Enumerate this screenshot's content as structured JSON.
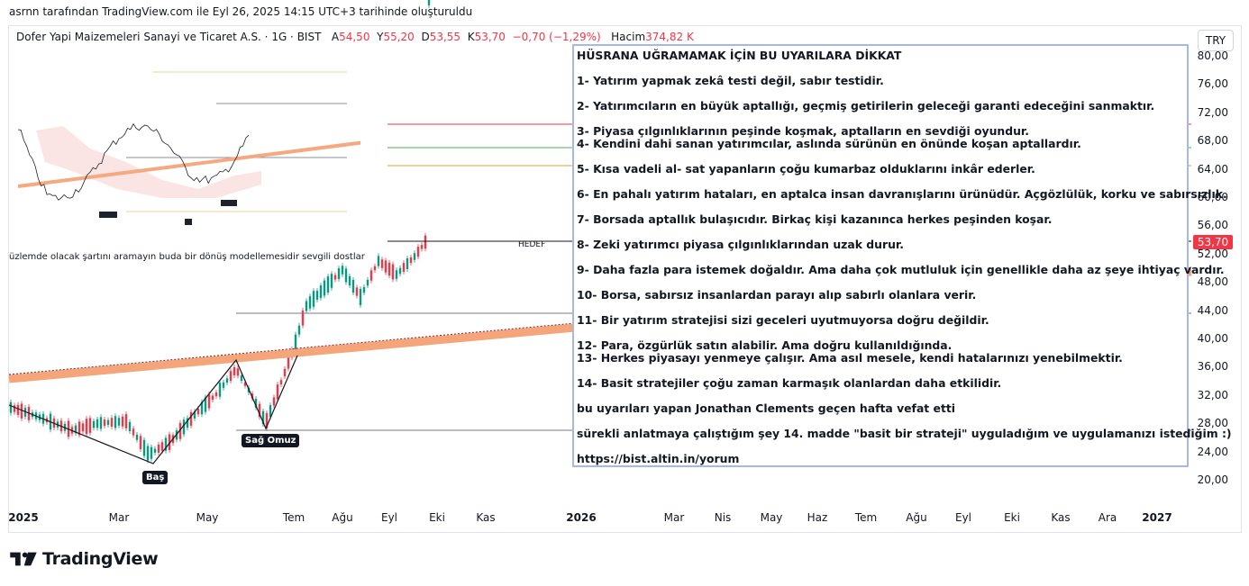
{
  "header": {
    "caption": "asrnn tarafından TradingView.com ile Eyl 26, 2025 14:15 UTC+3 tarihinde oluşturuldu"
  },
  "symbol": {
    "name": "Dofer Yapi Maizemeleri Sanayi ve Ticaret A.S. · 1G · BIST",
    "open_label": "A",
    "open": "54,50",
    "high_label": "Y",
    "high": "55,20",
    "low_label": "D",
    "low": "53,55",
    "close_label": "K",
    "close": "53,70",
    "change": "−0,70 (−1,29%)",
    "volume_label": "Hacim",
    "volume": "374,82 K"
  },
  "currency": "TRY",
  "price_axis": [
    "80,00",
    "76,00",
    "72,00",
    "68,00",
    "64,00",
    "60,00",
    "56,00",
    "52,00",
    "48,00",
    "44,00",
    "40,00",
    "36,00",
    "32,00",
    "28,00",
    "24,00",
    "20,00"
  ],
  "last_price": "53,70",
  "time_axis": [
    {
      "label": "2025",
      "bold": true
    },
    {
      "label": "Mar"
    },
    {
      "label": "May"
    },
    {
      "label": "Tem"
    },
    {
      "label": "Ağu"
    },
    {
      "label": "Eyl"
    },
    {
      "label": "Eki"
    },
    {
      "label": "Kas"
    },
    {
      "label": "2026",
      "bold": true
    },
    {
      "label": "Mar"
    },
    {
      "label": "Nis"
    },
    {
      "label": "May"
    },
    {
      "label": "Haz"
    },
    {
      "label": "Tem"
    },
    {
      "label": "Ağu"
    },
    {
      "label": "Eyl"
    },
    {
      "label": "Eki"
    },
    {
      "label": "Kas"
    },
    {
      "label": "Ara"
    },
    {
      "label": "2027",
      "bold": true
    }
  ],
  "annotations": {
    "pattern_note": "üzlemde olacak şartını aramayın buda bir dönüş modellemesidir sevgili dostlar",
    "head": "Baş",
    "right_shoulder": "Sağ Omuz",
    "target": "HEDEF"
  },
  "note": {
    "title": "HÜSRANA UĞRAMAMAK İÇİN BU UYARILARA DİKKAT",
    "lines": [
      "1- Yatırım yapmak zekâ testi değil, sabır testidir.",
      "2- Yatırımcıların en büyük aptallığı, geçmiş getirilerin geleceği garanti edeceğini sanmaktır.",
      "3- Piyasa çılgınlıklarının peşinde koşmak, aptalların en sevdiği oyundur.",
      "4- Kendini dahi sanan yatırımcılar, aslında sürünün en önünde koşan aptallardır.",
      "5- Kısa vadeli al- sat yapanların çoğu kumarbaz olduklarını inkâr ederler.",
      "6- En pahalı yatırım hataları, en aptalca insan davranışlarını ürünüdür. Açgözlülük, korku ve sabırsızlık.",
      "7- Borsada aptallık bulaşıcıdır. Birkaç kişi kazanınca herkes peşinden koşar.",
      "8- Zeki yatırımcı piyasa çılgınlıklarından uzak durur.",
      "9- Daha fazla para istemek doğaldır. Ama daha çok mutluluk için genellikle daha az şeye ihtiyaç vardır.",
      "10- Borsa, sabırsız insanlardan parayı alıp sabırlı olanlara verir.",
      "11- Bir yatırım stratejisi sizi geceleri uyutmuyorsa doğru değildir.",
      "12- Para, özgürlük satın alabilir. Ama doğru kullanıldığında.",
      "13- Herkes piyasayı yenmeye çalışır. Ama asıl mesele, kendi hatalarınızı yenebilmektir.",
      "14- Basit stratejiler çoğu zaman karmaşık olanlardan daha etkilidir.",
      "bu uyarıları yapan Jonathan Clements geçen hafta vefat etti",
      "sürekli anlatmaya çalıştığım şey 14. madde \"basit bir strateji\" uyguladığım ve uygulamanızı istediğim :)",
      "https://bist.altin.in/yorum"
    ]
  },
  "brand": {
    "name": "TradingView"
  },
  "colors": {
    "up": "#089981",
    "down": "#f23645",
    "trendline": "#f5a57a",
    "note_border": "#a5b8e8"
  }
}
